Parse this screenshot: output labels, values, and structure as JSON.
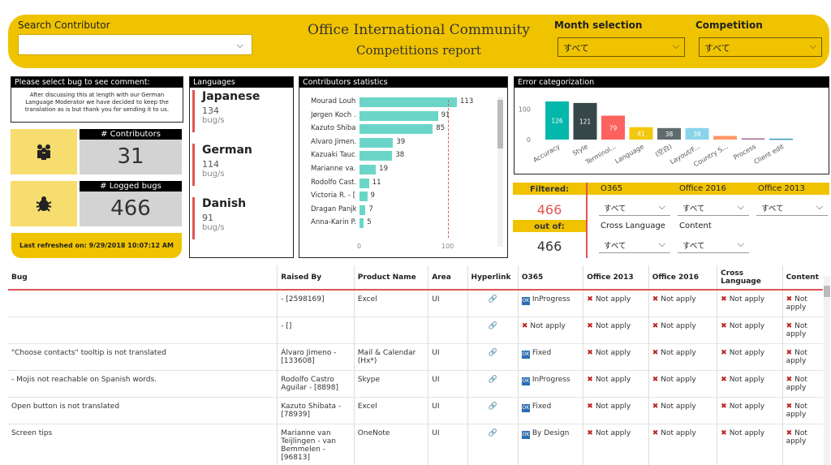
{
  "header": {
    "search_label": "Search Contributor",
    "title_line1": "Office International Community",
    "title_line2": "Competitions report",
    "month_label": "Month selection",
    "month_value": "すべて",
    "competition_label": "Competition",
    "competition_value": "すべて"
  },
  "comment": {
    "title": "Please select bug to see comment:",
    "text": "After discussing this at length with our German Language Moderator we have decided to keep the translation as is but thank you for sending it to us."
  },
  "kpis": {
    "contributors_label": "# Contributors",
    "contributors_value": "31",
    "bugs_label": "# Logged bugs",
    "bugs_value": "466",
    "refreshed": "Last refreshed on: 9/29/2018 10:07:12 AM"
  },
  "languages": {
    "title": "Languages",
    "items": [
      {
        "name": "Japanese",
        "count": "134",
        "unit": "bug/s"
      },
      {
        "name": "German",
        "count": "114",
        "unit": "bug/s"
      },
      {
        "name": "Danish",
        "count": "91",
        "unit": "bug/s"
      }
    ]
  },
  "contributors": {
    "title": "Contributors statistics",
    "axis": [
      "0",
      "100"
    ],
    "rows": [
      {
        "name": "Mourad Louh...",
        "value": 113
      },
      {
        "name": "Jørgen Koch ...",
        "value": 91
      },
      {
        "name": "Kazuto Shiba...",
        "value": 85
      },
      {
        "name": "Álvaro Jimen...",
        "value": 39
      },
      {
        "name": "Kazuaki Tauc...",
        "value": 38
      },
      {
        "name": "Marianne va...",
        "value": 19
      },
      {
        "name": "Rodolfo Cast...",
        "value": 11
      },
      {
        "name": "Victoria R. - [...",
        "value": 9
      },
      {
        "name": "Dragan Panjk...",
        "value": 7
      },
      {
        "name": "Anna-Karin P...",
        "value": 5
      }
    ]
  },
  "chart_data": {
    "type": "bar",
    "title": "Error categorization",
    "ylim": [
      0,
      130
    ],
    "yticks": [
      "0",
      "100"
    ],
    "categories": [
      "Accuracy",
      "Style",
      "Terminol...",
      "Language",
      "(空白)",
      "Layout/F...",
      "Country S...",
      "Process",
      "Client edit"
    ],
    "values": [
      126,
      121,
      79,
      41,
      38,
      38,
      12,
      4,
      3
    ],
    "labels": [
      "126",
      "121",
      "79",
      "41",
      "38",
      "38",
      "",
      "",
      ""
    ],
    "colors": [
      "#01b8aa",
      "#374649",
      "#fd625e",
      "#f2c80f",
      "#5f6b6d",
      "#8ad4eb",
      "#fe9666",
      "#a66999",
      "#3599b8"
    ]
  },
  "filter": {
    "filtered_label": "Filtered:",
    "filtered_value": "466",
    "outof_label": "out of:",
    "outof_value": "466",
    "o365_label": "O365",
    "o365_value": "すべて",
    "o2016_label": "Office 2016",
    "o2016_value": "すべて",
    "o2013_label": "Office 2013",
    "o2013_value": "すべて",
    "cross_label": "Cross Language",
    "cross_value": "すべて",
    "content_label": "Content",
    "content_value": "すべて"
  },
  "table": {
    "headers": [
      "Bug",
      "Raised By",
      "Product Name",
      "Area",
      "Hyperlink",
      "O365",
      "Office 2013",
      "Office 2016",
      "Cross Language",
      "Content"
    ],
    "rows": [
      {
        "bug": "",
        "by": "- [2598169]",
        "product": "Excel",
        "area": "UI",
        "o365": "InProgress",
        "o365ok": true,
        "o13": "Not apply",
        "o16": "Not apply",
        "cross": "Not apply",
        "content": "Not apply"
      },
      {
        "bug": "",
        "by": "- []",
        "product": "",
        "area": "",
        "o365": "Not apply",
        "o365ok": false,
        "o13": "Not apply",
        "o16": "Not apply",
        "cross": "Not apply",
        "content": "Not apply"
      },
      {
        "bug": "\"Choose contacts\" tooltip is not translated",
        "by": "Álvaro Jimeno - [133608]",
        "product": "Mail & Calendar (Hx*)",
        "area": "UI",
        "o365": "Fixed",
        "o365ok": true,
        "o13": "Not apply",
        "o16": "Not apply",
        "cross": "Not apply",
        "content": "Not apply"
      },
      {
        "bug": "- Mojis not reachable on Spanish words.",
        "by": "Rodolfo Castro Aguilar - [8898]",
        "product": "Skype",
        "area": "UI",
        "o365": "InProgress",
        "o365ok": true,
        "o13": "Not apply",
        "o16": "Not apply",
        "cross": "Not apply",
        "content": "Not apply"
      },
      {
        "bug": "Open button is not translated",
        "by": "Kazuto Shibata - [78939]",
        "product": "Excel",
        "area": "UI",
        "o365": "Fixed",
        "o365ok": true,
        "o13": "Not apply",
        "o16": "Not apply",
        "cross": "Not apply",
        "content": "Not apply"
      },
      {
        "bug": "Screen tips",
        "by": "Marianne van Teijlingen - van Bemmelen - [96813]",
        "product": "OneNote",
        "area": "UI",
        "o365": "By Design",
        "o365ok": true,
        "o13": "Not apply",
        "o16": "Not apply",
        "cross": "Not apply",
        "content": "Not apply"
      }
    ]
  }
}
